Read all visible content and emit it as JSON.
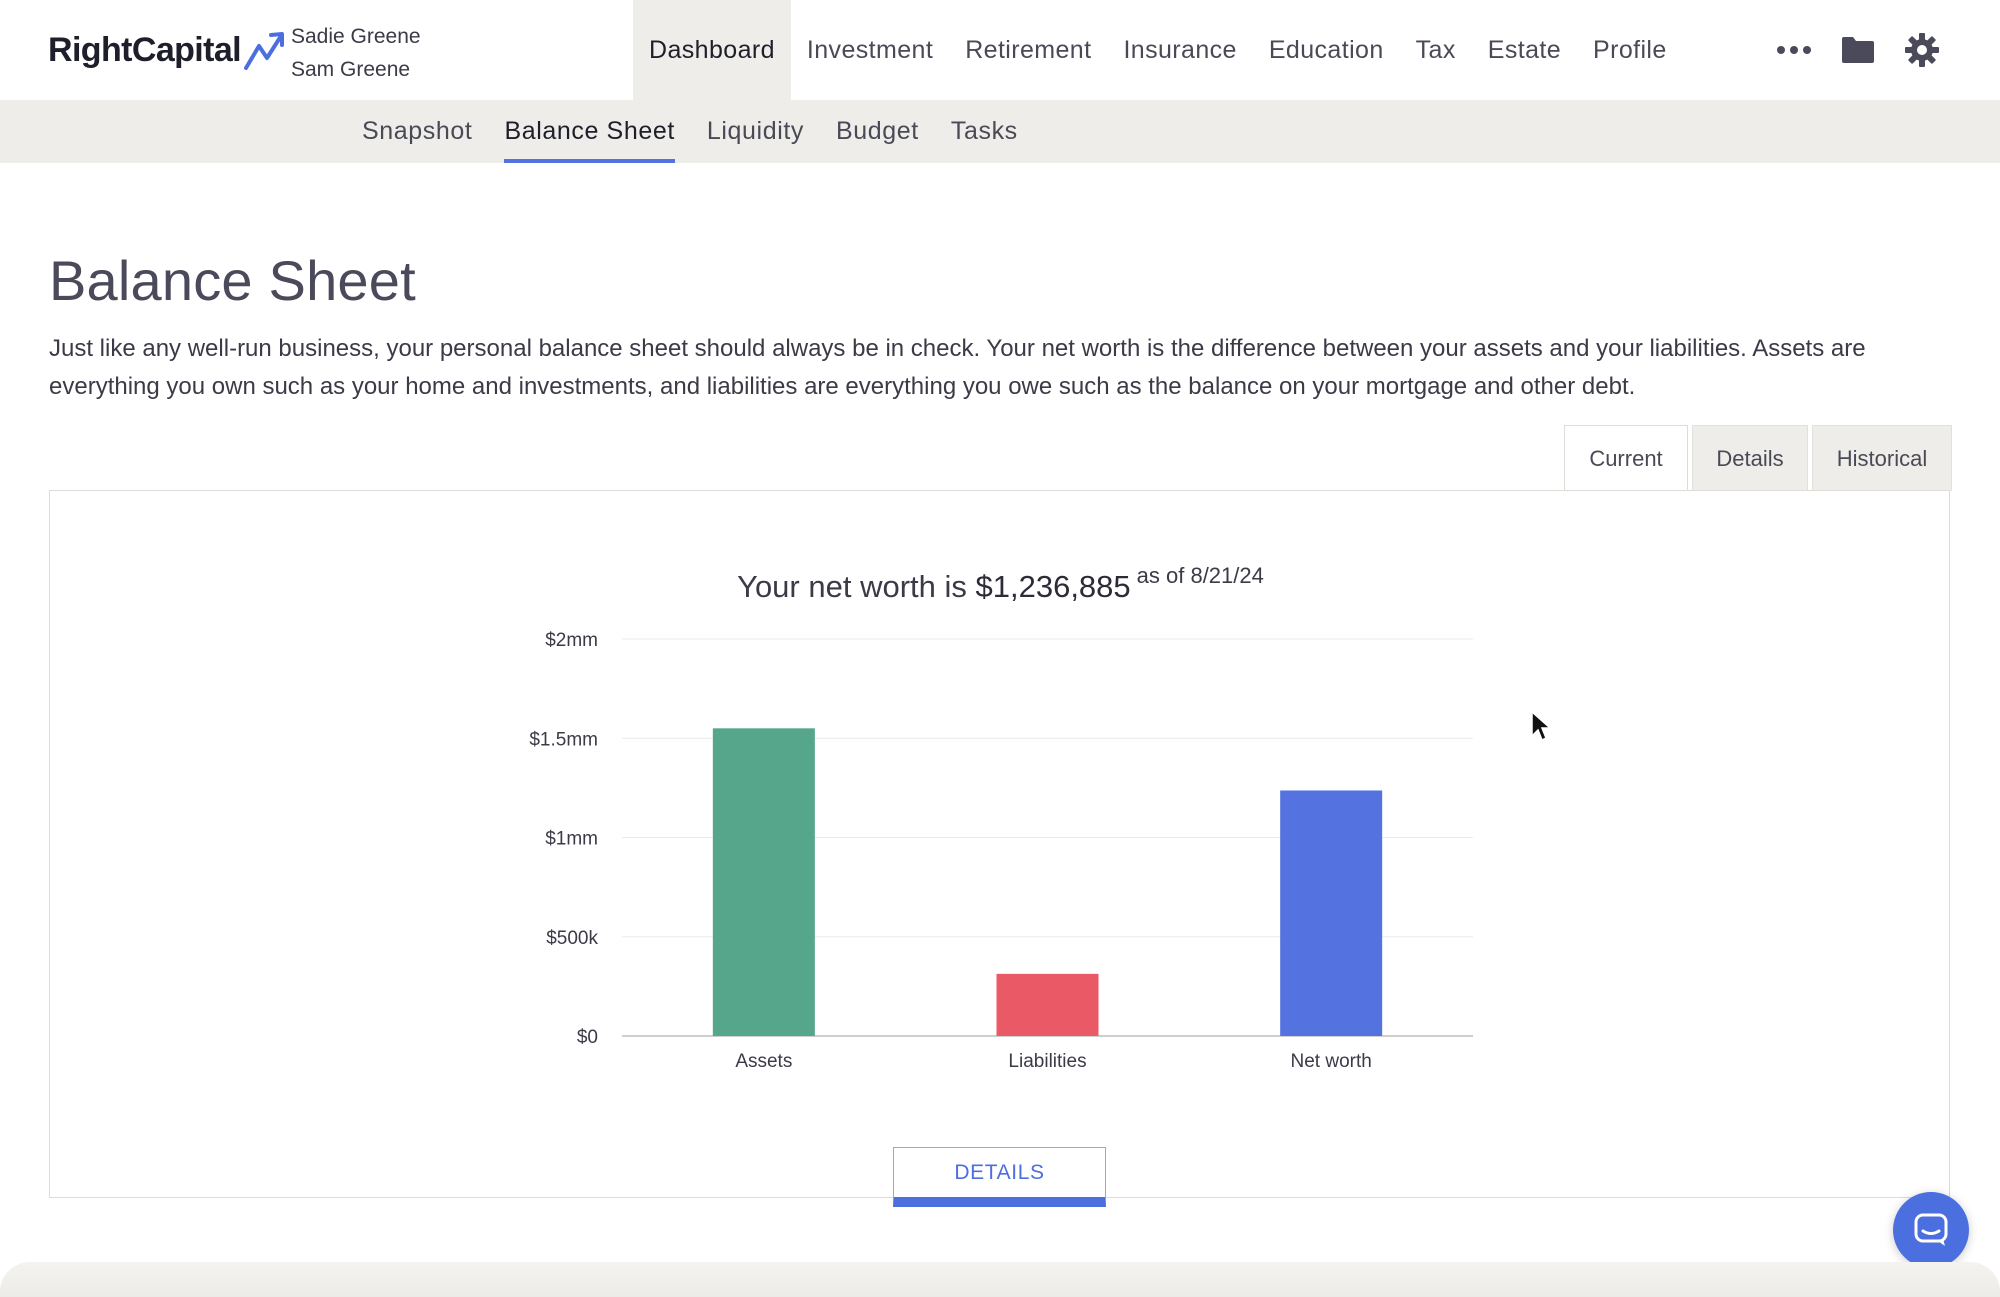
{
  "brand": {
    "name": "RightCapital"
  },
  "clients": [
    "Sadie Greene",
    "Sam Greene"
  ],
  "main_nav": [
    {
      "label": "Dashboard",
      "active": true
    },
    {
      "label": "Investment",
      "active": false
    },
    {
      "label": "Retirement",
      "active": false
    },
    {
      "label": "Insurance",
      "active": false
    },
    {
      "label": "Education",
      "active": false
    },
    {
      "label": "Tax",
      "active": false
    },
    {
      "label": "Estate",
      "active": false
    },
    {
      "label": "Profile",
      "active": false
    }
  ],
  "nav_icons": [
    "more-icon",
    "folder-icon",
    "gear-icon"
  ],
  "sub_nav": [
    {
      "label": "Snapshot",
      "active": false
    },
    {
      "label": "Balance Sheet",
      "active": true
    },
    {
      "label": "Liquidity",
      "active": false
    },
    {
      "label": "Budget",
      "active": false
    },
    {
      "label": "Tasks",
      "active": false
    }
  ],
  "page": {
    "title": "Balance Sheet",
    "description": "Just like any well-run business, your personal balance sheet should always be in check. Your net worth is the difference between your assets and your liabilities. Assets are everything you own such as your home and investments, and liabilities are everything you owe such as the balance on your mortgage and other debt."
  },
  "view_tabs": [
    {
      "label": "Current",
      "active": true
    },
    {
      "label": "Details",
      "active": false
    },
    {
      "label": "Historical",
      "active": false
    }
  ],
  "chart_header": {
    "prefix": "Your net worth is",
    "amount": "$1,236,885",
    "as_of": "as of 8/21/24"
  },
  "chart_data": {
    "type": "bar",
    "categories": [
      "Assets",
      "Liabilities",
      "Net worth"
    ],
    "values": [
      1550000,
      313000,
      1236885
    ],
    "colors": [
      "#55a68b",
      "#ea5a66",
      "#5473e0"
    ],
    "ylim": [
      0,
      2000000
    ],
    "yticks": [
      0,
      500000,
      1000000,
      1500000,
      2000000
    ],
    "ytick_labels": [
      "$0",
      "$500k",
      "$1mm",
      "$1.5mm",
      "$2mm"
    ],
    "grid": true
  },
  "details_button": {
    "label": "DETAILS"
  },
  "colors": {
    "accent": "#5473e0",
    "nav_bg": "#eeede9"
  }
}
